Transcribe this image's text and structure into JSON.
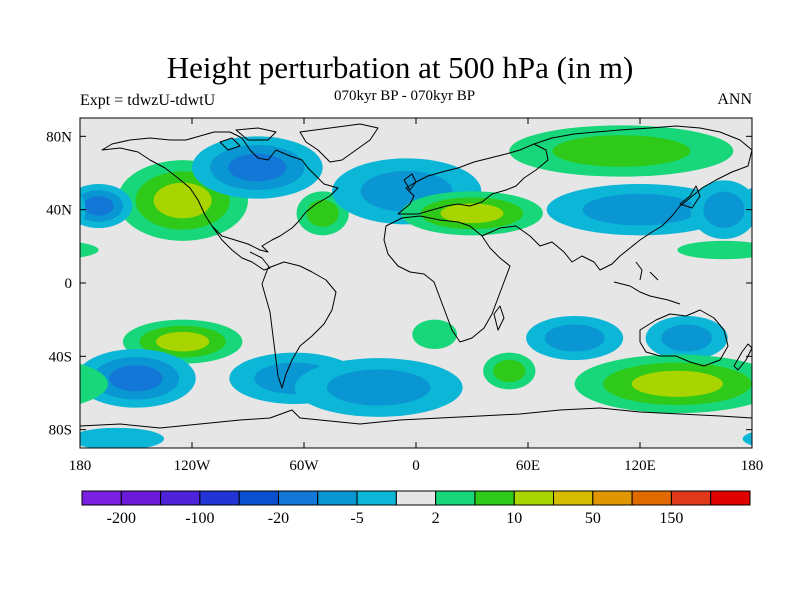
{
  "title": "Height perturbation at 500 hPa (in m)",
  "subtitle": "070kyr BP - 070kyr BP",
  "experiment": "Expt = tdwzU-tdwtU",
  "season": "ANN",
  "map": {
    "projection": "cylindrical equidistant",
    "lon_range": [
      -180,
      180
    ],
    "lat_range": [
      -90,
      90
    ],
    "lat_ticks": [
      {
        "value": 80,
        "label": "80N"
      },
      {
        "value": 40,
        "label": "40N"
      },
      {
        "value": 0,
        "label": "0"
      },
      {
        "value": -40,
        "label": "40S"
      },
      {
        "value": -80,
        "label": "80S"
      }
    ],
    "lon_ticks": [
      {
        "value": -180,
        "label": "180"
      },
      {
        "value": -120,
        "label": "120W"
      },
      {
        "value": -60,
        "label": "60W"
      },
      {
        "value": 0,
        "label": "0"
      },
      {
        "value": 60,
        "label": "60E"
      },
      {
        "value": 120,
        "label": "120E"
      },
      {
        "value": 180,
        "label": "180"
      }
    ],
    "background_color": "#e6e6e6",
    "coastline_color": "#000000"
  },
  "colorbar": {
    "colors": [
      "#7b1fe0",
      "#6a1ad6",
      "#4d22d8",
      "#2234d6",
      "#0a4fd0",
      "#1277d6",
      "#0a96d2",
      "#0bb6d6",
      "#e6e6e6",
      "#18d67a",
      "#2ec919",
      "#a8d400",
      "#d4bc00",
      "#e09600",
      "#e06a00",
      "#e03a1a",
      "#e00000"
    ],
    "labels": [
      {
        "boundary_index": 1,
        "text": "-200"
      },
      {
        "boundary_index": 3,
        "text": "-100"
      },
      {
        "boundary_index": 5,
        "text": "-20"
      },
      {
        "boundary_index": 7,
        "text": "-5"
      },
      {
        "boundary_index": 9,
        "text": "2"
      },
      {
        "boundary_index": 11,
        "text": "10"
      },
      {
        "boundary_index": 13,
        "text": "50"
      },
      {
        "boundary_index": 15,
        "text": "150"
      }
    ]
  },
  "anomaly_regions": [
    {
      "name": "alaska-west-canada-high",
      "lon": -125,
      "lat": 45,
      "rx": 35,
      "ry": 22,
      "levels": [
        "#18d67a",
        "#2ec919",
        "#a8d400"
      ]
    },
    {
      "name": "canada-arctic-low",
      "lon": -85,
      "lat": 63,
      "rx": 35,
      "ry": 17,
      "levels": [
        "#0bb6d6",
        "#0a96d2",
        "#1277d6"
      ]
    },
    {
      "name": "north-pacific-west-low",
      "lon": -170,
      "lat": 42,
      "rx": 18,
      "ry": 12,
      "levels": [
        "#0bb6d6",
        "#0a96d2",
        "#1277d6"
      ]
    },
    {
      "name": "north-atlantic-west-high",
      "lon": -50,
      "lat": 38,
      "rx": 14,
      "ry": 12,
      "levels": [
        "#18d67a",
        "#2ec919"
      ]
    },
    {
      "name": "north-atlantic-low",
      "lon": -5,
      "lat": 50,
      "rx": 40,
      "ry": 18,
      "levels": [
        "#0bb6d6",
        "#0a96d2"
      ]
    },
    {
      "name": "europe-mediterranean-high",
      "lon": 30,
      "lat": 38,
      "rx": 38,
      "ry": 12,
      "levels": [
        "#18d67a",
        "#2ec919",
        "#a8d400"
      ]
    },
    {
      "name": "siberia-high",
      "lon": 110,
      "lat": 72,
      "rx": 60,
      "ry": 14,
      "levels": [
        "#18d67a",
        "#2ec919"
      ]
    },
    {
      "name": "east-asia-low",
      "lon": 120,
      "lat": 40,
      "rx": 50,
      "ry": 14,
      "levels": [
        "#0bb6d6",
        "#0a96d2"
      ]
    },
    {
      "name": "east-pacific-low",
      "lon": 165,
      "lat": 40,
      "rx": 18,
      "ry": 16,
      "levels": [
        "#0bb6d6",
        "#0a96d2"
      ]
    },
    {
      "name": "tropical-west-pacific-high",
      "lon": 165,
      "lat": 18,
      "rx": 25,
      "ry": 5,
      "levels": [
        "#18d67a"
      ]
    },
    {
      "name": "south-pacific-high",
      "lon": -125,
      "lat": -32,
      "rx": 32,
      "ry": 12,
      "levels": [
        "#18d67a",
        "#2ec919",
        "#a8d400"
      ]
    },
    {
      "name": "south-pacific-low",
      "lon": -150,
      "lat": -52,
      "rx": 32,
      "ry": 16,
      "levels": [
        "#0bb6d6",
        "#0a96d2",
        "#1277d6"
      ]
    },
    {
      "name": "south-america-low",
      "lon": -65,
      "lat": -52,
      "rx": 35,
      "ry": 14,
      "levels": [
        "#0bb6d6",
        "#0a96d2"
      ]
    },
    {
      "name": "south-atlantic-low",
      "lon": -20,
      "lat": -57,
      "rx": 45,
      "ry": 16,
      "levels": [
        "#0bb6d6",
        "#0a96d2"
      ]
    },
    {
      "name": "south-atlantic-high",
      "lon": 10,
      "lat": -28,
      "rx": 12,
      "ry": 8,
      "levels": [
        "#18d67a"
      ]
    },
    {
      "name": "south-africa-high",
      "lon": 50,
      "lat": -48,
      "rx": 14,
      "ry": 10,
      "levels": [
        "#18d67a",
        "#2ec919"
      ]
    },
    {
      "name": "indian-ocean-low",
      "lon": 85,
      "lat": -30,
      "rx": 26,
      "ry": 12,
      "levels": [
        "#0bb6d6",
        "#0a96d2"
      ]
    },
    {
      "name": "australia-low",
      "lon": 145,
      "lat": -30,
      "rx": 22,
      "ry": 12,
      "levels": [
        "#0bb6d6",
        "#0a96d2"
      ]
    },
    {
      "name": "southern-ocean-high",
      "lon": 140,
      "lat": -55,
      "rx": 55,
      "ry": 16,
      "levels": [
        "#18d67a",
        "#2ec919",
        "#a8d400"
      ]
    },
    {
      "name": "antarctic-low",
      "lon": -160,
      "lat": -85,
      "rx": 25,
      "ry": 6,
      "levels": [
        "#0bb6d6"
      ]
    }
  ]
}
